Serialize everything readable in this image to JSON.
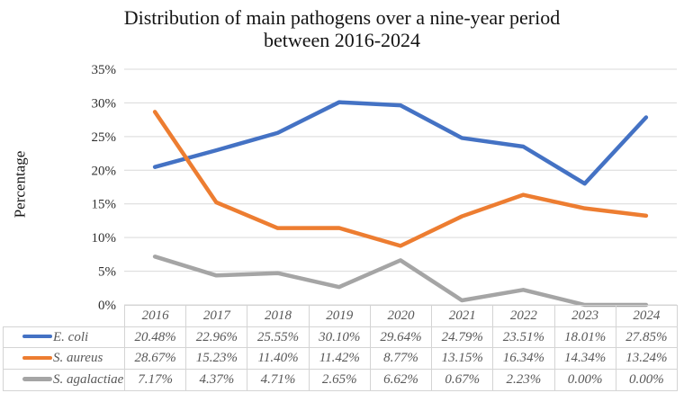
{
  "title_lines": [
    "Distribution of main pathogens over a nine-year period",
    "between 2016-2024"
  ],
  "chart_data": {
    "type": "line",
    "title": "Distribution of main pathogens over a nine-year period between 2016-2024",
    "x": [
      "2016",
      "2017",
      "2018",
      "2019",
      "2020",
      "2021",
      "2022",
      "2023",
      "2024"
    ],
    "series": [
      {
        "name": "E. coli",
        "color": "#4472C4",
        "values": [
          20.48,
          22.96,
          25.55,
          30.1,
          29.64,
          24.79,
          23.51,
          18.01,
          27.85
        ]
      },
      {
        "name": "S. aureus",
        "color": "#ED7D31",
        "values": [
          28.67,
          15.23,
          11.4,
          11.42,
          8.77,
          13.15,
          16.34,
          14.34,
          13.24
        ]
      },
      {
        "name": "S. agalactiae",
        "color": "#A5A5A5",
        "values": [
          7.17,
          4.37,
          4.71,
          2.65,
          6.62,
          0.67,
          2.23,
          0.0,
          0.0
        ]
      }
    ],
    "xlabel": "",
    "ylabel": "Percentage",
    "ylim": [
      0,
      35
    ],
    "ytick_step": 5,
    "ytick_suffix": "%",
    "grid": true,
    "legend_position": "table-rows-left",
    "value_decimals": 2,
    "value_suffix": "%"
  },
  "colors": {
    "gridline": "#D9D9D9",
    "table_border": "#D4D4D4",
    "table_text": "#595959",
    "tick_text": "#303030",
    "title_text": "#141414"
  }
}
